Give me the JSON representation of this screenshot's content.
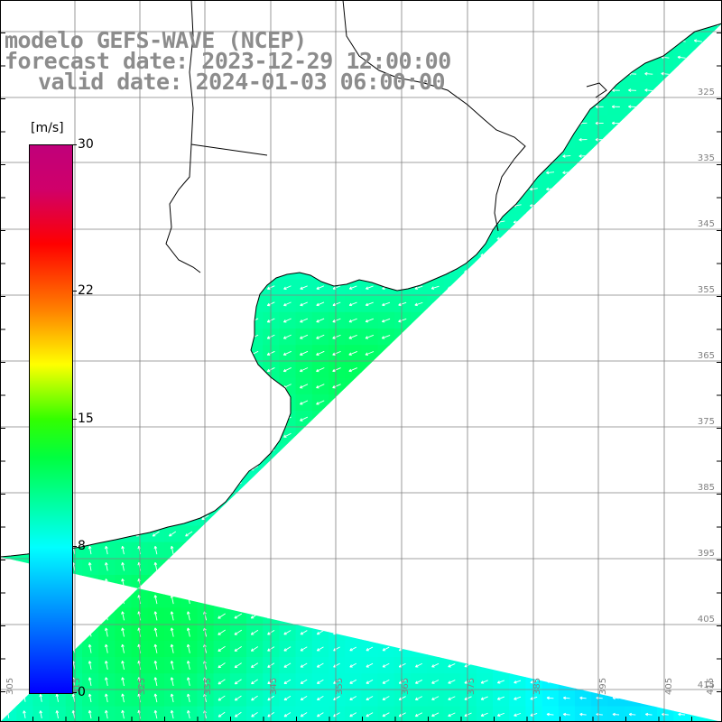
{
  "title": {
    "line1": "modelo GEFS-WAVE (NCEP)",
    "line2": "forecast date: 2023-12-29 12:00:00",
    "line3": "valid date: 2024-01-03 06:00:00"
  },
  "colorbar": {
    "unit": "[m/s]",
    "min": 0,
    "max": 30,
    "ticks": [
      "30",
      "22",
      "15",
      "8",
      "0"
    ],
    "tick_values": [
      30,
      22,
      15,
      8,
      0
    ],
    "colors": [
      "#0000ff",
      "#0090ff",
      "#00ffff",
      "#00ff40",
      "#33ff00",
      "#ffff00",
      "#ff8000",
      "#ff0000",
      "#c0007a"
    ]
  },
  "map": {
    "variable": "wind speed",
    "arrow_color": "#ffffff",
    "land_color": "#ffffff",
    "grid_color": "#808080",
    "coastline_color": "#000000",
    "right_axis_labels": [
      "325",
      "335",
      "345",
      "355",
      "365",
      "375",
      "385",
      "395",
      "405",
      "415"
    ],
    "bottom_axis_labels": [
      "305",
      "315",
      "325",
      "335",
      "345",
      "355",
      "365",
      "375",
      "385",
      "395",
      "405",
      "415"
    ]
  }
}
